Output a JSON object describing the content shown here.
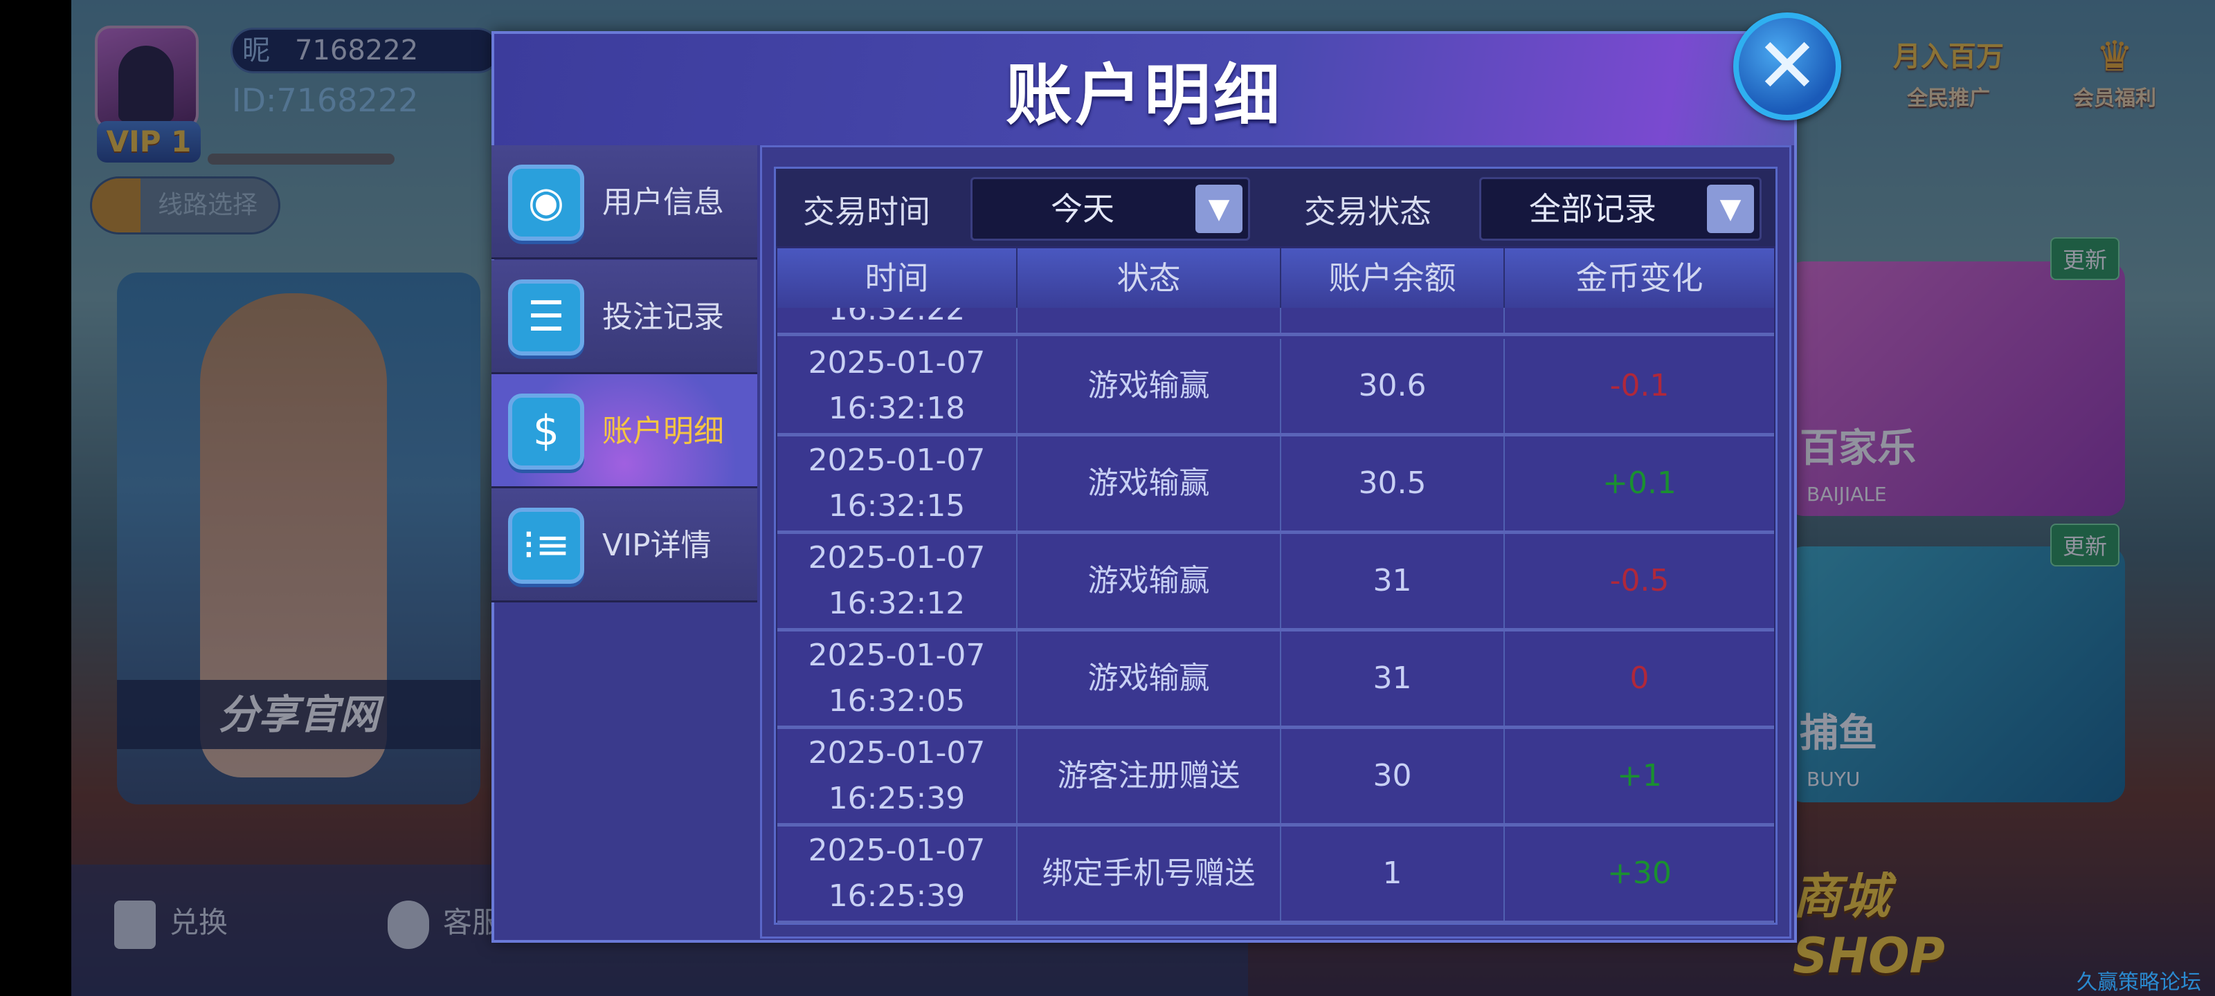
{
  "profile": {
    "nick_label": "昵",
    "nickname": "7168222",
    "id_text": "ID:7168222",
    "vip": "VIP 1",
    "route_button": "线路选择"
  },
  "promo": {
    "caption": "分享官网"
  },
  "bottom_bar": {
    "exchange": "兑换",
    "service": "客服"
  },
  "top_icons": {
    "promo_top": "月入百万",
    "promo": "全民推广",
    "member": "会员福利"
  },
  "games": [
    {
      "name": "百家乐",
      "sub": "BAIJIALE",
      "badge": "更新"
    },
    {
      "name": "捕鱼",
      "sub": "BUYU",
      "badge": "更新"
    }
  ],
  "shop": {
    "cn": "商城",
    "en": "SHOP"
  },
  "watermark": "久赢策略论坛",
  "dialog": {
    "title": "账户明细",
    "close_icon": "close-icon",
    "sidebar": [
      {
        "label": "用户信息",
        "icon": "user-icon"
      },
      {
        "label": "投注记录",
        "icon": "list-doc-icon"
      },
      {
        "label": "账户明细",
        "icon": "clipboard-money-icon",
        "active": true
      },
      {
        "label": "VIP详情",
        "icon": "bullet-list-icon"
      }
    ],
    "filters": {
      "time_label": "交易时间",
      "time_value": "今天",
      "status_label": "交易状态",
      "status_value": "全部记录"
    },
    "columns": [
      "时间",
      "状态",
      "账户余额",
      "金币变化"
    ],
    "partial_row_time": "16:32:22",
    "rows": [
      {
        "date": "2025-01-07",
        "time": "16:32:18",
        "status": "游戏输赢",
        "balance": "30.6",
        "change": "-0.1"
      },
      {
        "date": "2025-01-07",
        "time": "16:32:15",
        "status": "游戏输赢",
        "balance": "30.5",
        "change": "+0.1"
      },
      {
        "date": "2025-01-07",
        "time": "16:32:12",
        "status": "游戏输赢",
        "balance": "31",
        "change": "-0.5"
      },
      {
        "date": "2025-01-07",
        "time": "16:32:05",
        "status": "游戏输赢",
        "balance": "31",
        "change": "0"
      },
      {
        "date": "2025-01-07",
        "time": "16:25:39",
        "status": "游客注册赠送",
        "balance": "30",
        "change": "+1"
      },
      {
        "date": "2025-01-07",
        "time": "16:25:39",
        "status": "绑定手机号赠送",
        "balance": "1",
        "change": "+30"
      }
    ],
    "colors": {
      "negative": "#b0283a",
      "positive": "#1a9030",
      "active_tab": "#f5c542"
    }
  }
}
